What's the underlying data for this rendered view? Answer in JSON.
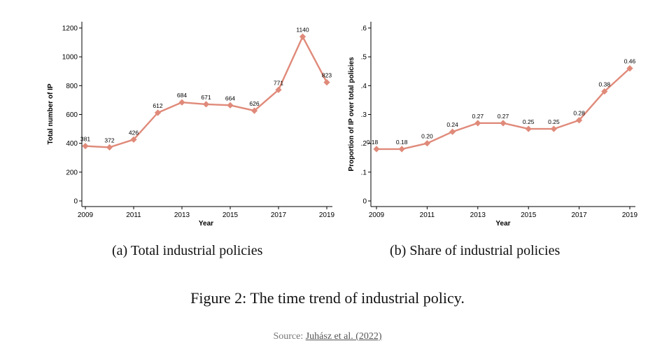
{
  "chart_data": [
    {
      "type": "line",
      "title": "",
      "xlabel": "Year",
      "ylabel": "Total number of IP",
      "x": [
        2009,
        2010,
        2011,
        2012,
        2013,
        2014,
        2015,
        2016,
        2017,
        2018,
        2019
      ],
      "values": [
        381,
        372,
        426,
        612,
        684,
        671,
        664,
        626,
        771,
        1140,
        823
      ],
      "data_labels": [
        "381",
        "372",
        "426",
        "612",
        "684",
        "671",
        "664",
        "626",
        "771",
        "1140",
        "823"
      ],
      "xticks": [
        2009,
        2011,
        2013,
        2015,
        2017,
        2019
      ],
      "xtick_labels": [
        "2009",
        "2011",
        "2013",
        "2015",
        "2017",
        "2019"
      ],
      "yticks": [
        0,
        200,
        400,
        600,
        800,
        1000,
        1200
      ],
      "ytick_labels": [
        "0",
        "200",
        "400",
        "600",
        "800",
        "1000",
        "1200"
      ],
      "xlim": [
        2009,
        2019
      ],
      "ylim": [
        0,
        1200
      ],
      "grid": false,
      "series_color": "#e08a7a"
    },
    {
      "type": "line",
      "title": "",
      "xlabel": "Year",
      "ylabel": "Proportion of IP over total policies",
      "x": [
        2009,
        2010,
        2011,
        2012,
        2013,
        2014,
        2015,
        2016,
        2017,
        2018,
        2019
      ],
      "values": [
        0.18,
        0.18,
        0.2,
        0.24,
        0.27,
        0.27,
        0.25,
        0.25,
        0.28,
        0.38,
        0.46
      ],
      "data_labels": [
        "0.18",
        "0.18",
        "0.20",
        "0.24",
        "0.27",
        "0.27",
        "0.25",
        "0.25",
        "0.28",
        "0.38",
        "0.46"
      ],
      "xticks": [
        2009,
        2011,
        2013,
        2015,
        2017,
        2019
      ],
      "xtick_labels": [
        "2009",
        "2011",
        "2013",
        "2015",
        "2017",
        "2019"
      ],
      "yticks": [
        0,
        0.1,
        0.2,
        0.3,
        0.4,
        0.5,
        0.6
      ],
      "ytick_labels": [
        "0",
        ".1",
        ".2",
        ".3",
        ".4",
        ".5",
        ".6"
      ],
      "xlim": [
        2009,
        2019
      ],
      "ylim": [
        0,
        0.6
      ],
      "grid": false,
      "series_color": "#e08a7a"
    }
  ],
  "captions": {
    "a": "(a) Total industrial policies",
    "b": "(b) Share of industrial policies",
    "figure": "Figure 2:  The time trend of industrial policy.",
    "source_prefix": "Source: ",
    "source_link": "Juhász et al. (2022)"
  }
}
